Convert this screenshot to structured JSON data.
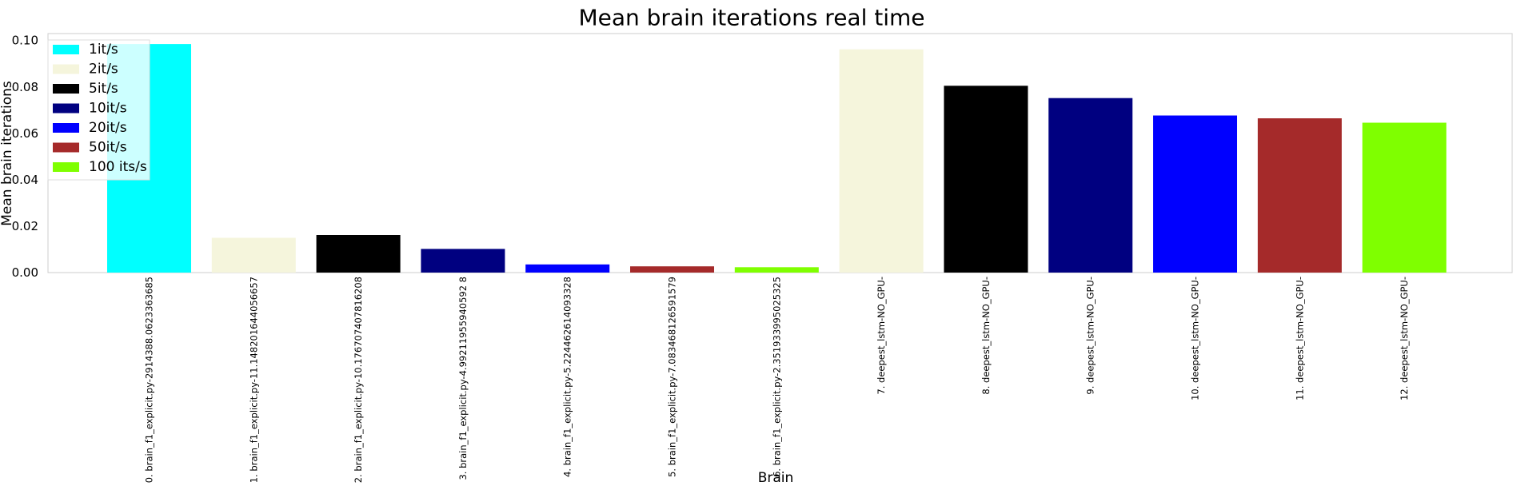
{
  "chart_data": {
    "type": "bar",
    "title": "Mean brain iterations real time",
    "xlabel": "Brain",
    "ylabel": "Mean brain iterations",
    "ylim": [
      0,
      0.103
    ],
    "yticks": [
      "0.00",
      "0.02",
      "0.04",
      "0.06",
      "0.08",
      "0.10"
    ],
    "ytick_values": [
      0,
      0.02,
      0.04,
      0.06,
      0.08,
      0.1
    ],
    "grid": false,
    "legend_position": "top-left",
    "legend": [
      {
        "label": "1it/s",
        "color": "#00ffff"
      },
      {
        "label": "2it/s",
        "color": "#f5f5dc"
      },
      {
        "label": "5it/s",
        "color": "#000000"
      },
      {
        "label": "10it/s",
        "color": "#000080"
      },
      {
        "label": "20it/s",
        "color": "#0000ff"
      },
      {
        "label": "50it/s",
        "color": "#a52a2a"
      },
      {
        "label": "100 its/s",
        "color": "#7fff00"
      }
    ],
    "categories": [
      "0. brain_f1_explicit.py-2914388.0623363685",
      "1. brain_f1_explicit.py-11.148201644056657",
      "2. brain_f1_explicit.py-10.176707407816208",
      "3. brain_f1_explicit.py-4.99211955940592 8",
      "4. brain_f1_explicit.py-5.224462614093328",
      "5. brain_f1_explicit.py-7.083468126591579",
      "6. brain_f1_explicit.py-2.351933995025325",
      "7. deepest_lstm-NO_GPU-",
      "8. deepest_lstm-NO_GPU-",
      "9. deepest_lstm-NO_GPU-",
      "10. deepest_lstm-NO_GPU-",
      "11. deepest_lstm-NO_GPU-",
      "12. deepest_lstm-NO_GPU-"
    ],
    "values": [
      0.0985,
      0.015,
      0.0162,
      0.0102,
      0.0035,
      0.0027,
      0.0023,
      0.0962,
      0.0805,
      0.0752,
      0.0677,
      0.0665,
      0.0646
    ],
    "bar_colors": [
      "#00ffff",
      "#f5f5dc",
      "#000000",
      "#000080",
      "#0000ff",
      "#a52a2a",
      "#7fff00",
      "#f5f5dc",
      "#000000",
      "#000080",
      "#0000ff",
      "#a52a2a",
      "#7fff00"
    ]
  }
}
